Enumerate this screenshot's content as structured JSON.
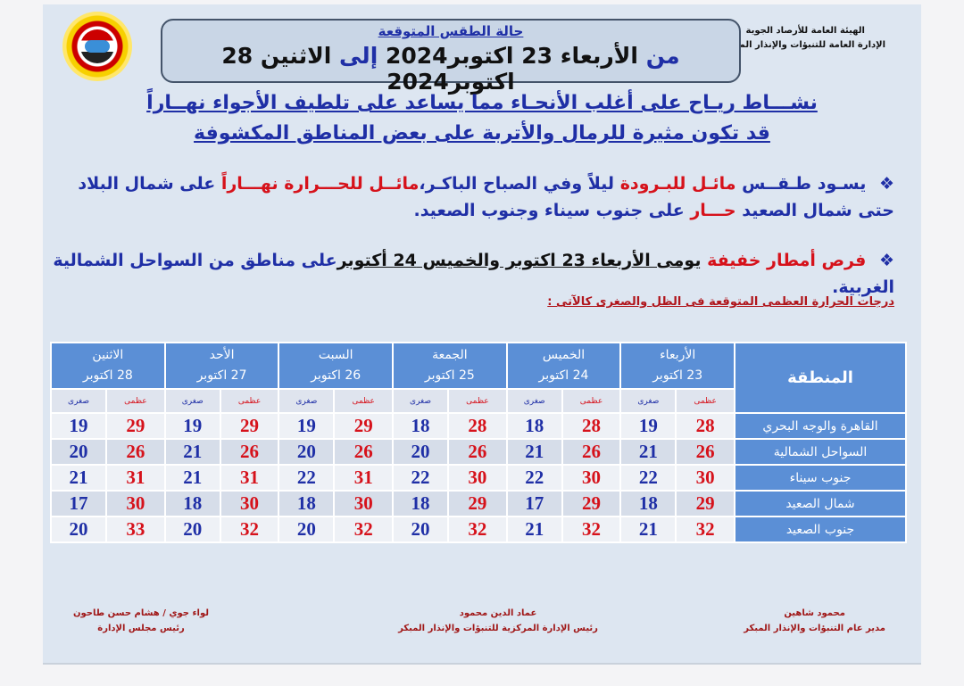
{
  "org": {
    "line1": "الهيئة العامة للأرصاد الجوية",
    "line2": "الإدارة العامة للتنبؤات والإنذار المبكر"
  },
  "logo": {
    "text": "EMA"
  },
  "title": {
    "heading": "حالة الطقس المتوقعة",
    "from": "من",
    "from_date": "الأربعاء 23 اكتوبر2024",
    "to": "إلى",
    "to_date": "الاثنين 28 اكتوبر2024"
  },
  "headline": {
    "line1": "نشـــاط ريـاح على أغلب الأنحـاء مما يساعد على تلطيف الأجواء نهــاراً",
    "line2": "قد تكون مثيرة للرمال والأتربة على بعض المناطق المكشوفة"
  },
  "bullet1": {
    "s1": "يسـود طـقــس",
    "s2": "مائـل للبـرودة",
    "s3": "ليلاً وفي الصباح الباكـر،",
    "s4": "مائــل للحـــرارة نهـــاراً",
    "s5": "على شمال البلاد حتى شمال الصعيد",
    "s6": "حـــار",
    "s7": "على جنوب سيناء وجنوب الصعيد."
  },
  "bullet2": {
    "s1": "فرص أمطار خفيفة",
    "s2": "يومى الأربعاء 23 اكتوبر والخميس 24 أكتوبر",
    "s3": "على مناطق من السواحل الشمالية الغربية."
  },
  "bullet_marker": "❖",
  "table_caption": "درجات الحرارة العظمى المتوقعة فى الظل والصغرى كالآتى :",
  "table": {
    "region_header": "المنطقة",
    "max_label": "عظمى",
    "min_label": "صغرى",
    "days": [
      {
        "day": "الأربعاء",
        "date": "23 اكتوبر"
      },
      {
        "day": "الخميس",
        "date": "24 اكتوبر"
      },
      {
        "day": "الجمعة",
        "date": "25 اكتوبر"
      },
      {
        "day": "السبت",
        "date": "26 اكتوبر"
      },
      {
        "day": "الأحد",
        "date": "27 اكتوبر"
      },
      {
        "day": "الاثنين",
        "date": "28 اكتوبر"
      }
    ],
    "rows": [
      {
        "region": "القاهرة والوجه البحري",
        "vals": [
          [
            28,
            19
          ],
          [
            28,
            18
          ],
          [
            28,
            18
          ],
          [
            29,
            19
          ],
          [
            29,
            19
          ],
          [
            29,
            19
          ]
        ]
      },
      {
        "region": "السواحل الشمالية",
        "vals": [
          [
            26,
            21
          ],
          [
            26,
            21
          ],
          [
            26,
            20
          ],
          [
            26,
            20
          ],
          [
            26,
            21
          ],
          [
            26,
            20
          ]
        ]
      },
      {
        "region": "جنوب سيناء",
        "vals": [
          [
            30,
            22
          ],
          [
            30,
            22
          ],
          [
            30,
            22
          ],
          [
            31,
            22
          ],
          [
            31,
            21
          ],
          [
            31,
            21
          ]
        ]
      },
      {
        "region": "شمال الصعيد",
        "vals": [
          [
            29,
            18
          ],
          [
            29,
            17
          ],
          [
            29,
            18
          ],
          [
            30,
            18
          ],
          [
            30,
            18
          ],
          [
            30,
            17
          ]
        ]
      },
      {
        "region": "جنوب الصعيد",
        "vals": [
          [
            32,
            21
          ],
          [
            32,
            21
          ],
          [
            32,
            20
          ],
          [
            32,
            20
          ],
          [
            32,
            20
          ],
          [
            33,
            20
          ]
        ]
      }
    ]
  },
  "signatures": [
    {
      "name": "محمود شاهين",
      "title": "مدير عام التنبؤات والإنذار المبكر"
    },
    {
      "name": "عماد الدين محمود",
      "title": "رئيس الإدارة المركزية للتنبؤات والإنذار المبكر"
    },
    {
      "name": "لواء جوي / هشام حسن طاحون",
      "title": "رئيس مجلس الإدارة"
    }
  ]
}
